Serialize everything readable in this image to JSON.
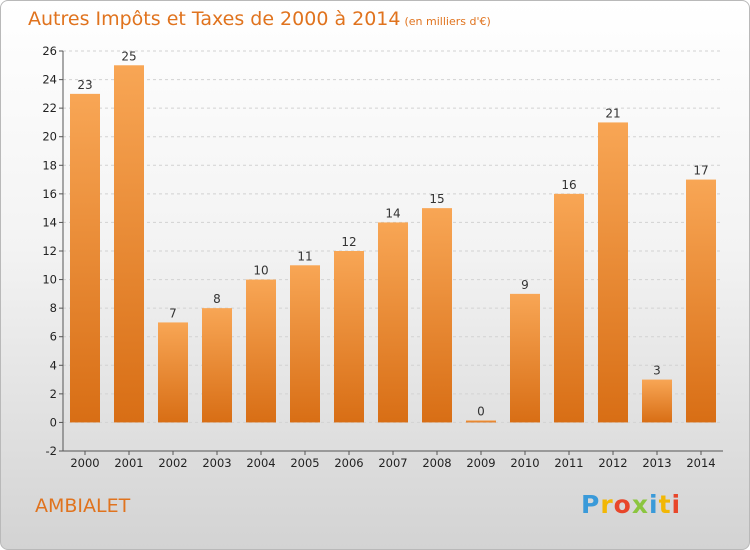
{
  "header": {
    "title": "Autres Impôts et Taxes de 2000 à 2014",
    "unit": "(en milliers d'€)"
  },
  "footer": {
    "commune": "AMBIALET",
    "logo_letters": [
      "P",
      "r",
      "o",
      "x",
      "i",
      "t",
      "i"
    ],
    "logo_colors": [
      "#3a9ad9",
      "#f2b705",
      "#e8462a",
      "#8bc53f",
      "#3a9ad9",
      "#f2b705",
      "#e8462a"
    ]
  },
  "chart_data": {
    "type": "bar",
    "categories": [
      "2000",
      "2001",
      "2002",
      "2003",
      "2004",
      "2005",
      "2006",
      "2007",
      "2008",
      "2009",
      "2010",
      "2011",
      "2012",
      "2013",
      "2014"
    ],
    "values": [
      23,
      25,
      7,
      8,
      10,
      11,
      12,
      14,
      15,
      0,
      9,
      16,
      21,
      3,
      17
    ],
    "data_labels": [
      "23",
      "25",
      "7",
      "8",
      "10",
      "11",
      "12",
      "14",
      "15",
      "0",
      "9",
      "16",
      "21",
      "3",
      "17"
    ],
    "ylim": [
      -2,
      26
    ],
    "yticks": [
      "-2",
      "0",
      "2",
      "4",
      "6",
      "8",
      "10",
      "12",
      "14",
      "16",
      "18",
      "20",
      "22",
      "24",
      "26"
    ],
    "grid": true,
    "bar_color": "#f0913a",
    "title": "Autres Impôts et Taxes de 2000 à 2014",
    "xlabel": "",
    "ylabel": ""
  }
}
